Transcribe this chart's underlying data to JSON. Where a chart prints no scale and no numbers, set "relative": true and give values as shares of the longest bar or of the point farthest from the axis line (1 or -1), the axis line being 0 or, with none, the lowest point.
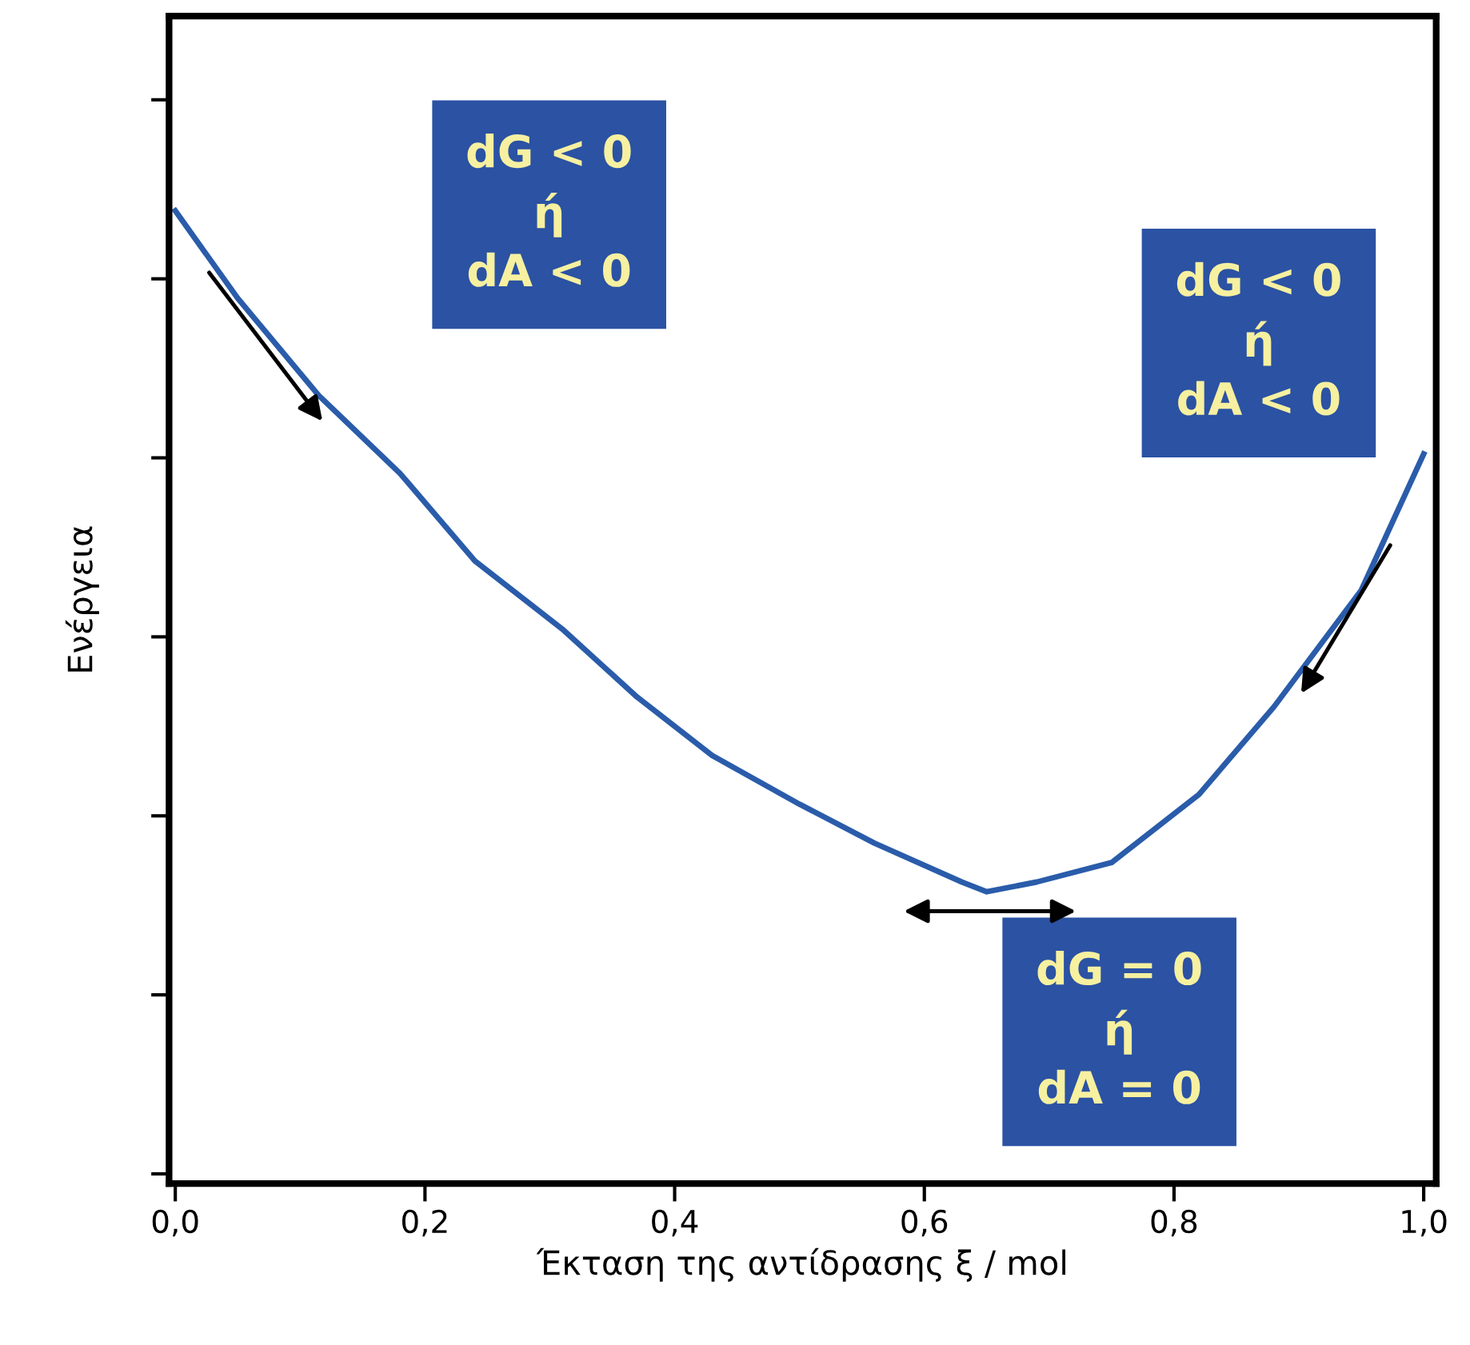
{
  "chart_data": {
    "type": "line",
    "xlabel": "Έκταση της αντίδρασης ξ / mol",
    "ylabel": "Ενέργεια",
    "relative": true,
    "xlim": [
      -0.005,
      1.01
    ],
    "xticks": [
      {
        "value": 0,
        "label": "0,0"
      },
      {
        "value": 0.2,
        "label": "0,2"
      },
      {
        "value": 0.4,
        "label": "0,4"
      },
      {
        "value": 0.6,
        "label": "0,6"
      },
      {
        "value": 0.8,
        "label": "0,8"
      },
      {
        "value": 1.0,
        "label": "1,0"
      }
    ],
    "series": [
      {
        "color": "#2a5caa",
        "x": [
          0,
          0.05,
          0.115,
          0.18,
          0.24,
          0.31,
          0.37,
          0.43,
          0.5,
          0.56,
          0.63,
          0.65,
          0.69,
          0.75,
          0.82,
          0.88,
          0.95,
          1.0
        ],
        "values": [
          1.0,
          0.91,
          0.81,
          0.73,
          0.64,
          0.57,
          0.5,
          0.44,
          0.39,
          0.35,
          0.31,
          0.3,
          0.31,
          0.33,
          0.4,
          0.49,
          0.61,
          0.75
        ]
      }
    ],
    "annotations": [
      "dG < 0\nή\ndA < 0",
      "dG < 0\nή\ndA < 0",
      "dG = 0\nή\ndA = 0"
    ],
    "grid": false,
    "legend": false,
    "marker": "none",
    "line_style": "solid"
  }
}
